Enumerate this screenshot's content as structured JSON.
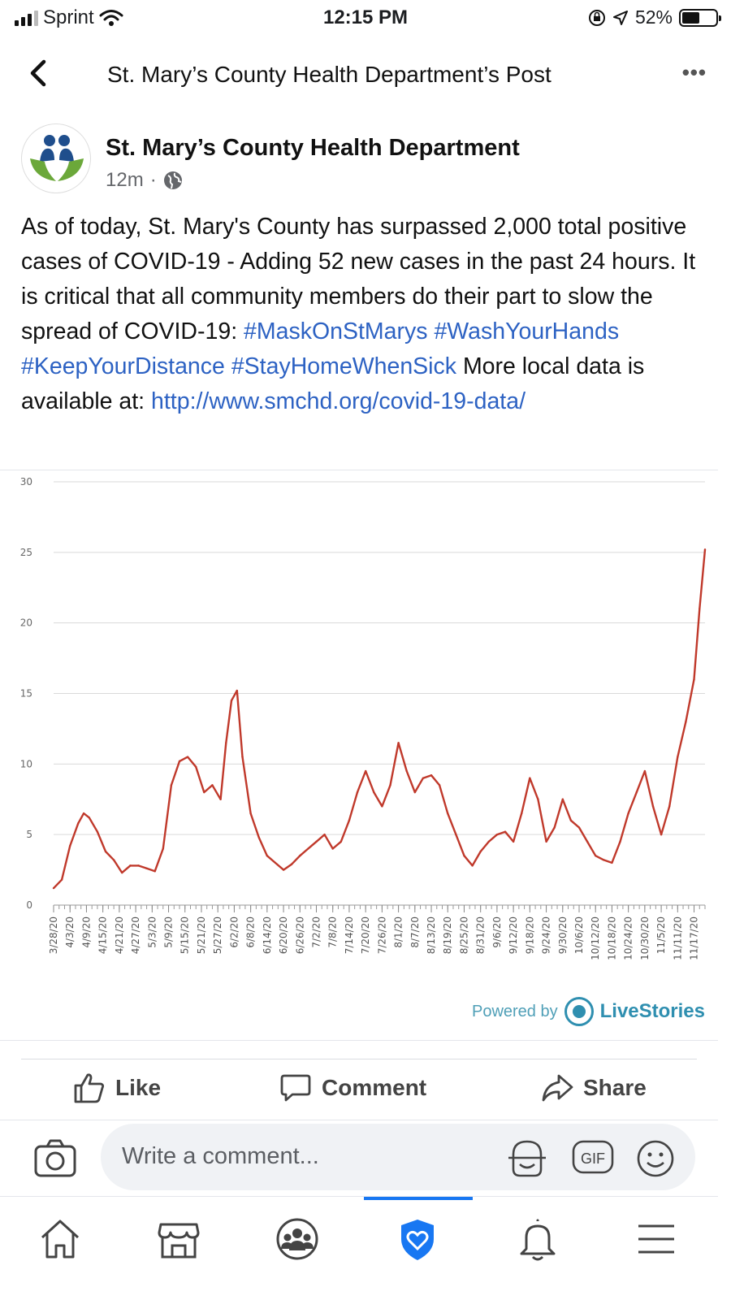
{
  "status_bar": {
    "carrier": "Sprint",
    "time": "12:15 PM",
    "battery": "52%",
    "battery_level": 0.52
  },
  "header": {
    "title": "St. Mary’s County Health Department’s Post"
  },
  "post": {
    "page_name": "St. Mary’s County Health Department",
    "time": "12m",
    "text_plain": "As of today, St. Mary's County has surpassed 2,000 total positive cases of COVID-19 - Adding 52 new cases in the past 24 hours. It is critical that all community members do their part to slow the spread of COVID-19:",
    "hashtags": [
      "#MaskOnStMarys",
      "#WashYourHands",
      "#KeepYourDistance",
      "#StayHomeWhenSick"
    ],
    "text_after_tags": "More local data is available at:",
    "link": "http://www.smchd.org/covid-19-data/"
  },
  "chart_data": {
    "type": "line",
    "title": "",
    "xlabel": "",
    "ylabel": "",
    "ylim": [
      0,
      30
    ],
    "yticks": [
      0,
      5,
      10,
      15,
      20,
      25,
      30
    ],
    "x_tick_labels": [
      "3/28/20",
      "4/3/20",
      "4/9/20",
      "4/15/20",
      "4/21/20",
      "4/27/20",
      "5/3/20",
      "5/9/20",
      "5/15/20",
      "5/21/20",
      "5/27/20",
      "6/2/20",
      "6/8/20",
      "6/14/20",
      "6/20/20",
      "6/26/20",
      "7/2/20",
      "7/8/20",
      "7/14/20",
      "7/20/20",
      "7/26/20",
      "8/1/20",
      "8/7/20",
      "8/13/20",
      "8/19/20",
      "8/25/20",
      "8/31/20",
      "9/6/20",
      "9/12/20",
      "9/18/20",
      "9/24/20",
      "9/30/20",
      "10/6/20",
      "10/12/20",
      "10/18/20",
      "10/24/20",
      "10/30/20",
      "11/5/20",
      "11/11/20",
      "11/17/20"
    ],
    "grid": true,
    "line_color": "#c0392b",
    "series": [
      {
        "x": [
          "3/28/20",
          "3/31/20",
          "4/3/20",
          "4/6/20",
          "4/8/20",
          "4/10/20",
          "4/13/20",
          "4/16/20",
          "4/19/20",
          "4/22/20",
          "4/25/20",
          "4/28/20",
          "5/1/20",
          "5/4/20",
          "5/7/20",
          "5/10/20",
          "5/13/20",
          "5/16/20",
          "5/19/20",
          "5/22/20",
          "5/25/20",
          "5/28/20",
          "5/30/20",
          "6/1/20",
          "6/3/20",
          "6/5/20",
          "6/8/20",
          "6/11/20",
          "6/14/20",
          "6/17/20",
          "6/20/20",
          "6/23/20",
          "6/26/20",
          "6/29/20",
          "7/2/20",
          "7/5/20",
          "7/8/20",
          "7/11/20",
          "7/14/20",
          "7/17/20",
          "7/20/20",
          "7/23/20",
          "7/26/20",
          "7/29/20",
          "8/1/20",
          "8/4/20",
          "8/7/20",
          "8/10/20",
          "8/13/20",
          "8/16/20",
          "8/19/20",
          "8/22/20",
          "8/25/20",
          "8/28/20",
          "8/31/20",
          "9/3/20",
          "9/6/20",
          "9/9/20",
          "9/12/20",
          "9/15/20",
          "9/18/20",
          "9/21/20",
          "9/24/20",
          "9/27/20",
          "9/30/20",
          "10/3/20",
          "10/6/20",
          "10/9/20",
          "10/12/20",
          "10/15/20",
          "10/18/20",
          "10/21/20",
          "10/24/20",
          "10/27/20",
          "10/30/20",
          "11/2/20",
          "11/5/20",
          "11/8/20",
          "11/11/20",
          "11/14/20",
          "11/17/20",
          "11/19/20",
          "11/21/20"
        ],
        "values": [
          1.2,
          1.8,
          4.2,
          5.8,
          6.5,
          6.2,
          5.2,
          3.8,
          3.2,
          2.3,
          2.8,
          2.8,
          2.6,
          2.4,
          4.0,
          8.5,
          10.2,
          10.5,
          9.8,
          8.0,
          8.5,
          7.5,
          11.5,
          14.5,
          15.2,
          10.5,
          6.5,
          4.8,
          3.5,
          3.0,
          2.5,
          2.9,
          3.5,
          4.0,
          4.5,
          5.0,
          4.0,
          4.5,
          6.0,
          8.0,
          9.5,
          8.0,
          7.0,
          8.5,
          11.5,
          9.5,
          8.0,
          9.0,
          9.2,
          8.5,
          6.5,
          5.0,
          3.5,
          2.8,
          3.8,
          4.5,
          5.0,
          5.2,
          4.5,
          6.5,
          9.0,
          7.5,
          4.5,
          5.5,
          7.5,
          6.0,
          5.5,
          4.5,
          3.5,
          3.2,
          3.0,
          4.5,
          6.5,
          8.0,
          9.5,
          7.0,
          5.0,
          7.0,
          10.5,
          13.0,
          16.0,
          21.0,
          25.2
        ]
      }
    ],
    "credit_prefix": "Powered by",
    "credit_brand": "LiveStories"
  },
  "actions": {
    "like": "Like",
    "comment": "Comment",
    "share": "Share"
  },
  "comment_bar": {
    "placeholder": "Write a comment...",
    "gif_label": "GIF"
  },
  "colors": {
    "link": "#2d62c3",
    "accent": "#1877f2",
    "line": "#c0392b",
    "livestories": "#2f8fb0"
  },
  "icons": {
    "status": [
      "signal-icon",
      "wifi-icon",
      "orientation-lock-icon",
      "location-icon",
      "battery-icon"
    ],
    "nav": [
      "home-icon",
      "marketplace-icon",
      "groups-icon",
      "covid-info-shield-icon",
      "bell-icon",
      "menu-icon"
    ]
  }
}
